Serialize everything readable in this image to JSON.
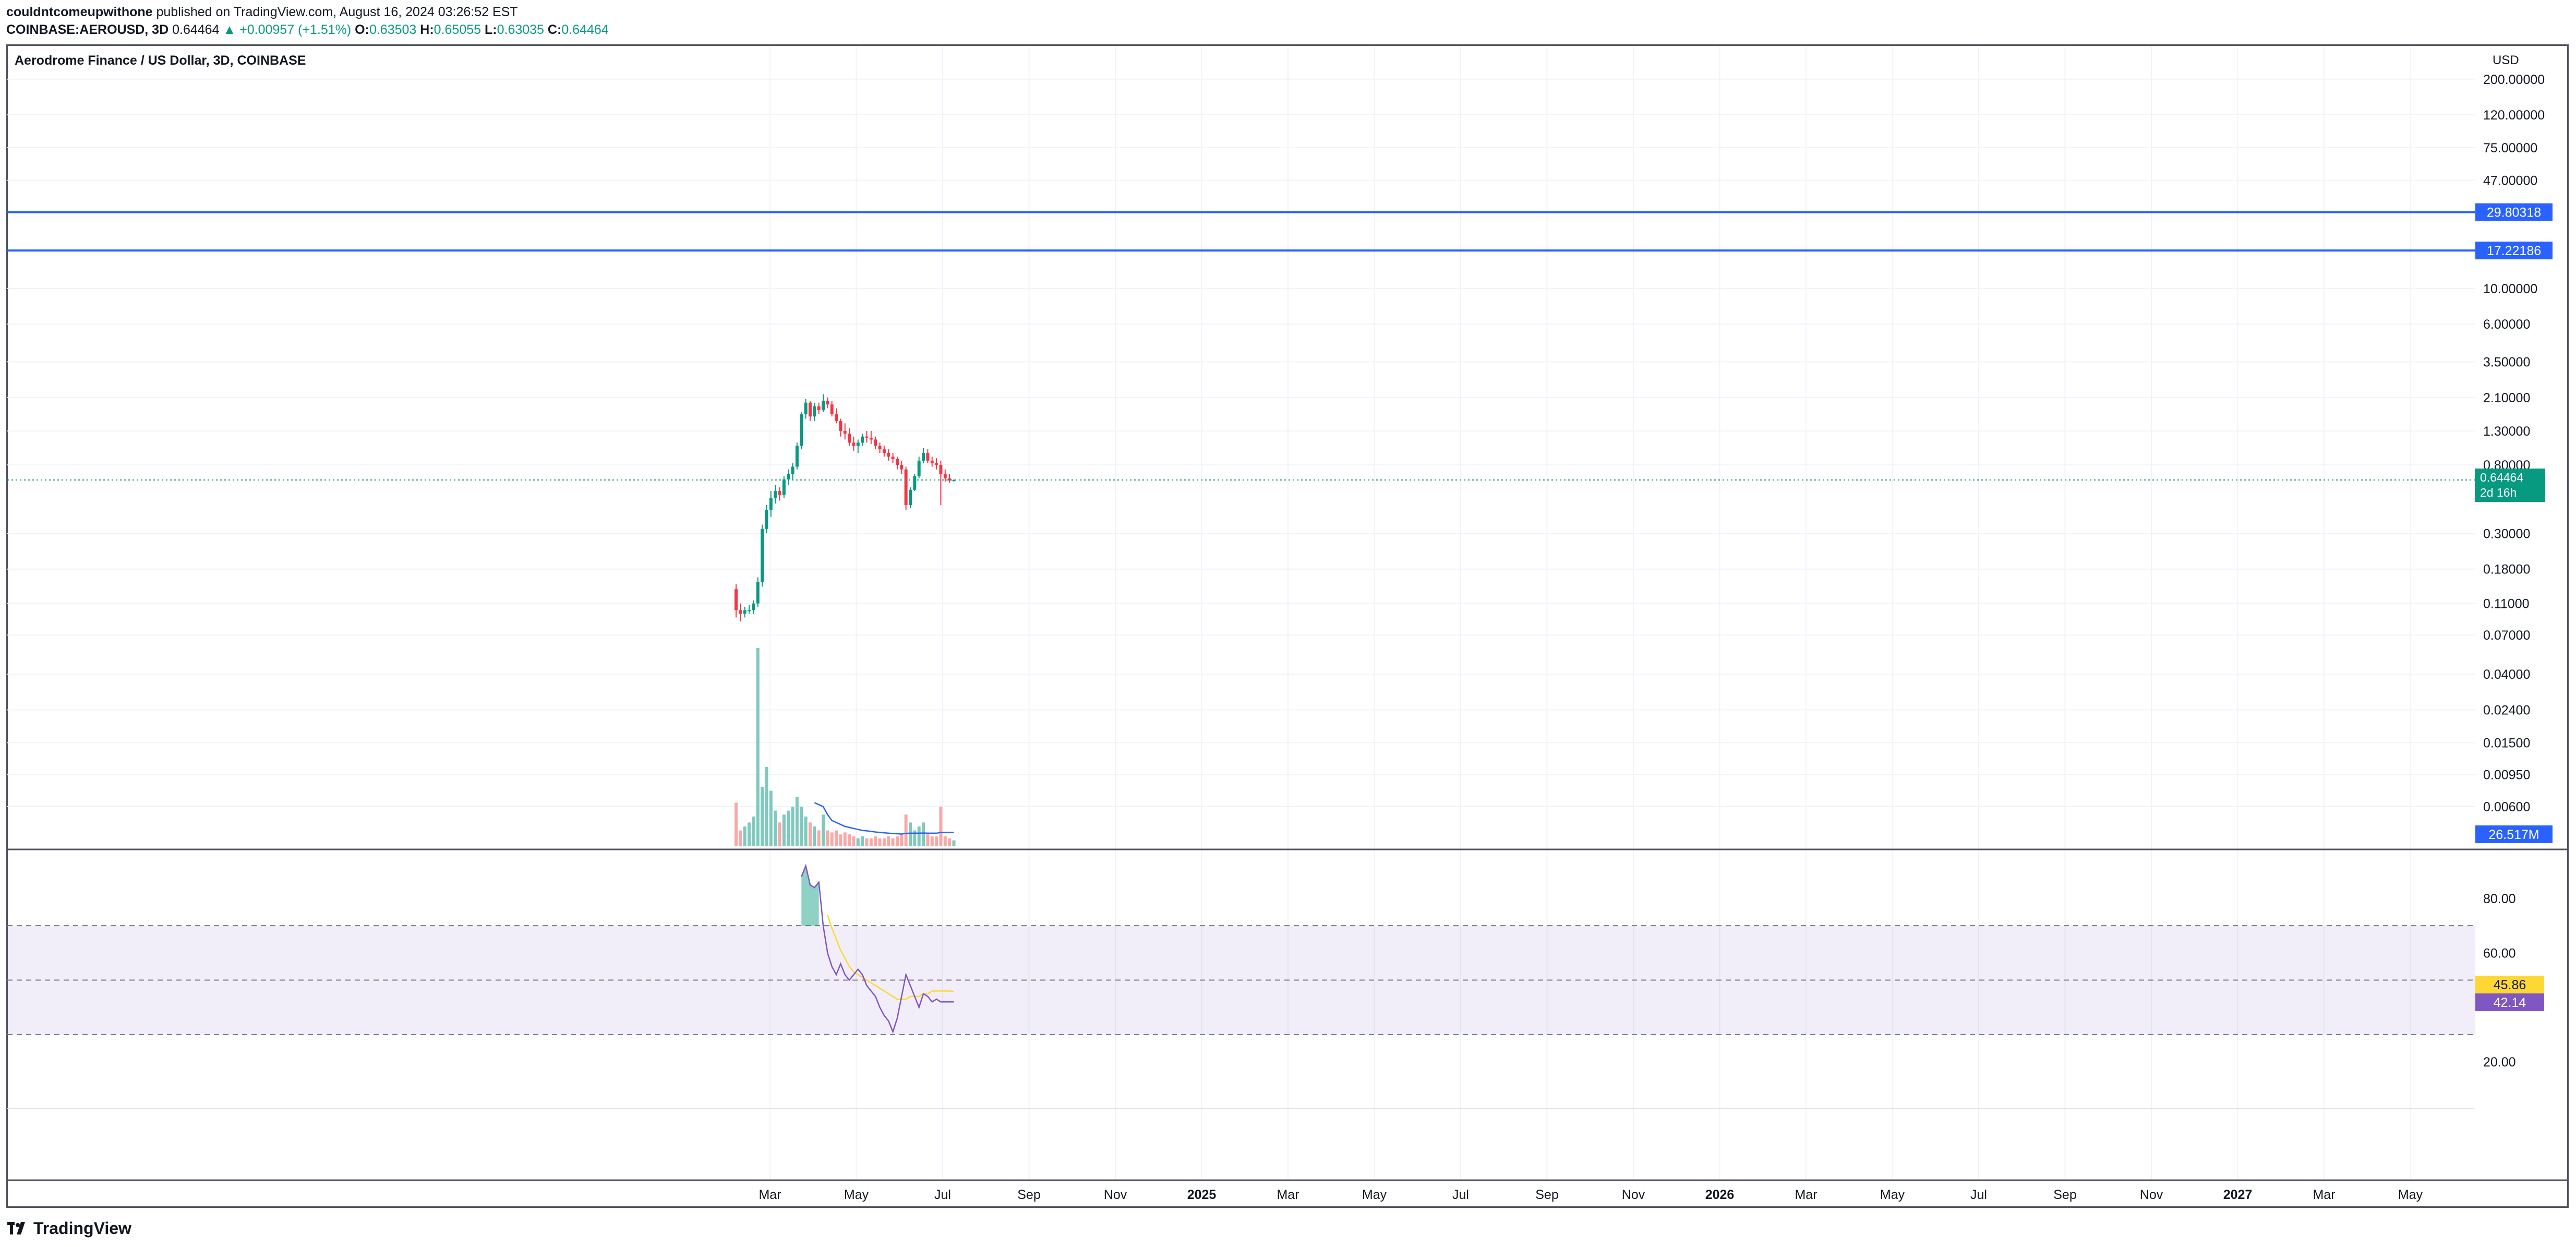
{
  "header": {
    "author": "couldntcomeupwithone",
    "published_text": "published on TradingView.com, August 16, 2024 03:26:52 EST",
    "symbol": "COINBASE:AEROUSD, 3D",
    "last_price": "0.64464",
    "change": "+0.00957 (+1.51%)",
    "open_label": "O:",
    "open": "0.63503",
    "high_label": "H:",
    "high": "0.65055",
    "low_label": "L:",
    "low": "0.63035",
    "close_label": "C:",
    "close": "0.64464"
  },
  "chart": {
    "title": "Aerodrome Finance / US Dollar, 3D, COINBASE",
    "currency": "USD",
    "current_price_label": "0.64464",
    "countdown": "2d 16h",
    "volume_label": "26.517M",
    "rsi_label": "42.14",
    "rsi_ma_label": "45.86"
  },
  "colors": {
    "up": "#089981",
    "down": "#f23645",
    "hline": "#2962ff",
    "rsi": "#7e57c2",
    "rsi_ma": "#fdd835",
    "volume_ma": "#2962ff",
    "vol_up": "#7fc9be",
    "vol_down": "#f7a9a7"
  },
  "branding": {
    "logo_text": "TradingView"
  },
  "chart_data": {
    "type": "candlestick",
    "price_scale": "log",
    "price_axis_ticks": [
      "200.00000",
      "120.00000",
      "75.00000",
      "47.00000",
      "10.00000",
      "6.00000",
      "3.50000",
      "2.10000",
      "1.30000",
      "0.80000",
      "0.30000",
      "0.18000",
      "0.11000",
      "0.07000",
      "0.04000",
      "0.02400",
      "0.01500",
      "0.00950",
      "0.00600"
    ],
    "horizontal_lines": [
      29.80318,
      17.22186
    ],
    "horizontal_line_labels": [
      "29.80318",
      "17.22186"
    ],
    "time_axis_labels": [
      "Mar",
      "May",
      "Jul",
      "Sep",
      "Nov",
      "2025",
      "Mar",
      "May",
      "Jul",
      "Sep",
      "Nov",
      "2026",
      "Mar",
      "May",
      "Jul",
      "Sep",
      "Nov",
      "2027",
      "Mar",
      "May"
    ],
    "candles": [
      [
        0.135,
        0.145,
        0.09,
        0.1
      ],
      [
        0.1,
        0.11,
        0.085,
        0.095
      ],
      [
        0.095,
        0.105,
        0.09,
        0.1
      ],
      [
        0.1,
        0.108,
        0.095,
        0.1
      ],
      [
        0.1,
        0.115,
        0.095,
        0.11
      ],
      [
        0.11,
        0.16,
        0.105,
        0.15
      ],
      [
        0.15,
        0.34,
        0.14,
        0.32
      ],
      [
        0.32,
        0.45,
        0.3,
        0.42
      ],
      [
        0.42,
        0.55,
        0.38,
        0.5
      ],
      [
        0.5,
        0.6,
        0.46,
        0.55
      ],
      [
        0.55,
        0.58,
        0.48,
        0.52
      ],
      [
        0.52,
        0.68,
        0.5,
        0.65
      ],
      [
        0.65,
        0.75,
        0.6,
        0.7
      ],
      [
        0.7,
        0.82,
        0.65,
        0.78
      ],
      [
        0.78,
        1.1,
        0.75,
        1.05
      ],
      [
        1.05,
        1.7,
        1.0,
        1.65
      ],
      [
        1.65,
        2.05,
        1.55,
        1.95
      ],
      [
        1.95,
        2.0,
        1.5,
        1.6
      ],
      [
        1.6,
        1.95,
        1.5,
        1.85
      ],
      [
        1.85,
        1.95,
        1.65,
        1.75
      ],
      [
        1.75,
        2.2,
        1.7,
        2.0
      ],
      [
        2.0,
        2.1,
        1.8,
        1.9
      ],
      [
        1.9,
        2.0,
        1.6,
        1.65
      ],
      [
        1.65,
        1.8,
        1.45,
        1.5
      ],
      [
        1.5,
        1.55,
        1.2,
        1.3
      ],
      [
        1.3,
        1.45,
        1.15,
        1.25
      ],
      [
        1.25,
        1.35,
        1.05,
        1.1
      ],
      [
        1.1,
        1.2,
        0.98,
        1.05
      ],
      [
        1.05,
        1.15,
        0.95,
        1.1
      ],
      [
        1.1,
        1.25,
        1.05,
        1.2
      ],
      [
        1.2,
        1.3,
        1.1,
        1.18
      ],
      [
        1.18,
        1.3,
        1.08,
        1.15
      ],
      [
        1.15,
        1.2,
        1.0,
        1.05
      ],
      [
        1.05,
        1.1,
        0.95,
        1.0
      ],
      [
        1.0,
        1.05,
        0.9,
        0.95
      ],
      [
        0.95,
        1.0,
        0.85,
        0.9
      ],
      [
        0.9,
        0.95,
        0.82,
        0.87
      ],
      [
        0.87,
        0.9,
        0.75,
        0.8
      ],
      [
        0.8,
        0.85,
        0.7,
        0.75
      ],
      [
        0.75,
        0.78,
        0.42,
        0.45
      ],
      [
        0.45,
        0.58,
        0.43,
        0.56
      ],
      [
        0.56,
        0.7,
        0.55,
        0.68
      ],
      [
        0.68,
        0.9,
        0.66,
        0.85
      ],
      [
        0.85,
        1.02,
        0.82,
        0.95
      ],
      [
        0.95,
        1.0,
        0.82,
        0.85
      ],
      [
        0.85,
        0.9,
        0.78,
        0.82
      ],
      [
        0.82,
        0.88,
        0.75,
        0.8
      ],
      [
        0.8,
        0.85,
        0.45,
        0.7
      ],
      [
        0.7,
        0.75,
        0.63,
        0.66
      ],
      [
        0.66,
        0.7,
        0.62,
        0.64
      ],
      [
        0.635,
        0.651,
        0.63,
        0.645
      ]
    ],
    "volume_relative": [
      0.22,
      0.08,
      0.1,
      0.12,
      0.15,
      1.0,
      0.3,
      0.4,
      0.28,
      0.18,
      0.12,
      0.16,
      0.18,
      0.2,
      0.25,
      0.2,
      0.15,
      0.12,
      0.1,
      0.08,
      0.16,
      0.08,
      0.07,
      0.08,
      0.06,
      0.07,
      0.06,
      0.05,
      0.04,
      0.05,
      0.04,
      0.04,
      0.05,
      0.04,
      0.04,
      0.05,
      0.04,
      0.05,
      0.06,
      0.16,
      0.12,
      0.08,
      0.1,
      0.12,
      0.06,
      0.05,
      0.05,
      0.2,
      0.05,
      0.04,
      0.03
    ],
    "volume_ma_relative": [
      null,
      null,
      null,
      null,
      null,
      null,
      null,
      null,
      null,
      null,
      null,
      null,
      null,
      null,
      null,
      null,
      null,
      null,
      0.22,
      0.21,
      0.2,
      0.16,
      0.13,
      0.12,
      0.11,
      0.1,
      0.095,
      0.09,
      0.085,
      0.08,
      0.078,
      0.075,
      0.072,
      0.07,
      0.068,
      0.066,
      0.064,
      0.063,
      0.062,
      0.065,
      0.066,
      0.066,
      0.066,
      0.067,
      0.066,
      0.066,
      0.066,
      0.07,
      0.07,
      0.07,
      0.07
    ],
    "rsi_axis_ticks": [
      "80.00",
      "60.00",
      "20.00"
    ],
    "rsi_bands": [
      70,
      50,
      30
    ],
    "rsi": [
      null,
      null,
      null,
      null,
      null,
      null,
      null,
      null,
      null,
      null,
      null,
      null,
      null,
      null,
      null,
      88,
      92,
      85,
      84,
      86,
      70,
      60,
      55,
      52,
      56,
      52,
      50,
      52,
      54,
      52,
      48,
      46,
      44,
      40,
      37,
      35,
      31,
      36,
      44,
      52,
      48,
      44,
      40,
      45,
      44,
      42,
      43,
      42,
      42,
      42,
      42
    ],
    "rsi_ma": [
      null,
      null,
      null,
      null,
      null,
      null,
      null,
      null,
      null,
      null,
      null,
      null,
      null,
      null,
      null,
      null,
      null,
      null,
      null,
      null,
      null,
      74,
      69,
      65,
      61,
      58,
      55,
      53,
      52,
      51,
      50,
      49,
      48,
      47,
      46,
      45,
      44,
      43,
      43,
      43,
      44,
      44,
      44,
      45,
      45,
      46,
      46,
      46,
      46,
      46,
      45.86
    ]
  }
}
